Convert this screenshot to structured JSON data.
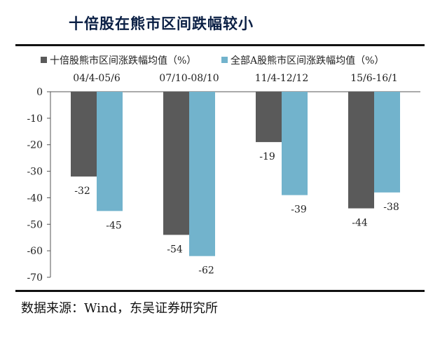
{
  "header": {
    "title": "十倍股在熊市区间跌幅较小"
  },
  "footer": {
    "source": "数据来源：Wind，东吴证券研究所"
  },
  "colors": {
    "series1": "#5a5a5a",
    "series2": "#72b3cc",
    "rule": "#111111",
    "title": "#0a1f44"
  },
  "chart_data": {
    "type": "bar",
    "categories": [
      "04/4-05/6",
      "07/10-08/10",
      "11/4-12/12",
      "15/6-16/1"
    ],
    "series": [
      {
        "name": "十倍股熊市区间涨跌幅均值（%）",
        "values": [
          -32,
          -54,
          -19,
          -44
        ]
      },
      {
        "name": "全部A股熊市区间涨跌幅均值（%）",
        "values": [
          -45,
          -62,
          -39,
          -38
        ]
      }
    ],
    "ylim": [
      -70,
      0
    ],
    "yticks": [
      0,
      -10,
      -20,
      -30,
      -40,
      -50,
      -60,
      -70
    ],
    "legend": "top",
    "grid": false,
    "category_labels_position": "top"
  }
}
